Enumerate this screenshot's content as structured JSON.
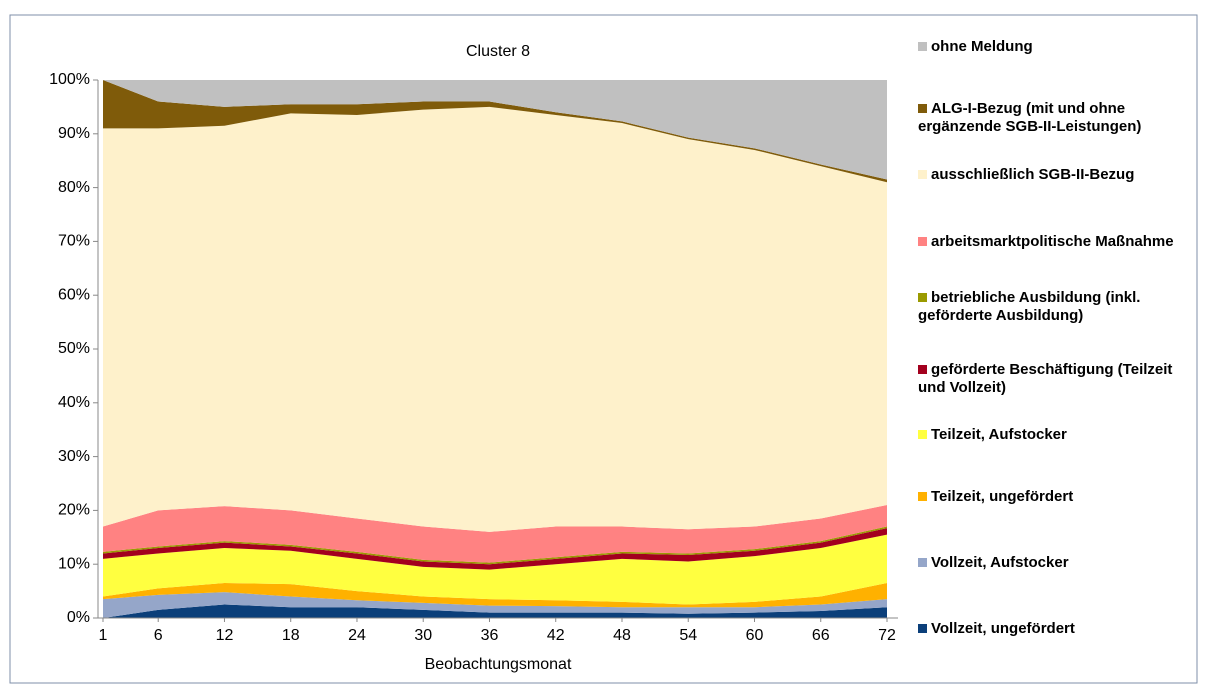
{
  "chart_data": {
    "type": "stacked_area",
    "title": "Cluster 8",
    "xlabel": "Beobachtungsmonat",
    "x": [
      1,
      6,
      12,
      18,
      24,
      30,
      36,
      42,
      48,
      54,
      60,
      66,
      72
    ],
    "xlim": [
      1,
      72
    ],
    "xticks": [
      1,
      6,
      12,
      18,
      24,
      30,
      36,
      42,
      48,
      54,
      60,
      66,
      72
    ],
    "ylim": [
      0,
      100
    ],
    "yticks": [
      {
        "value": 0,
        "label": "0%"
      },
      {
        "value": 10,
        "label": "10%"
      },
      {
        "value": 20,
        "label": "20%"
      },
      {
        "value": 30,
        "label": "30%"
      },
      {
        "value": 40,
        "label": "40%"
      },
      {
        "value": 50,
        "label": "50%"
      },
      {
        "value": 60,
        "label": "60%"
      },
      {
        "value": 70,
        "label": "70%"
      },
      {
        "value": 80,
        "label": "80%"
      },
      {
        "value": 90,
        "label": "90%"
      },
      {
        "value": 100,
        "label": "100%"
      }
    ],
    "series": [
      {
        "name": "Vollzeit, ungefördert",
        "color": "#0b3f7a",
        "values": [
          0,
          1.5,
          2.5,
          2,
          2,
          1.5,
          1,
          1,
          1,
          0.8,
          1,
          1.3,
          2
        ]
      },
      {
        "name": "Vollzeit, Aufstocker",
        "color": "#95a6c9",
        "values": [
          3.5,
          2.8,
          2.3,
          2,
          1.3,
          1.3,
          1.3,
          1.2,
          1,
          1.2,
          1,
          1.2,
          1.5
        ]
      },
      {
        "name": "Teilzeit, ungefördert",
        "color": "#ffb100",
        "values": [
          0.5,
          1.2,
          1.7,
          2.3,
          1.7,
          1.2,
          1.2,
          1.1,
          1,
          0.5,
          1,
          1.5,
          3
        ]
      },
      {
        "name": "Teilzeit, Aufstocker",
        "color": "#ffff40",
        "values": [
          7,
          6.5,
          6.5,
          6.2,
          6,
          5.5,
          5.5,
          6.7,
          8,
          8,
          8.5,
          9,
          9
        ]
      },
      {
        "name": "geförderte Beschäftigung (Teilzeit und Vollzeit)",
        "color": "#a3001e",
        "values": [
          1,
          1,
          1,
          0.8,
          1,
          1,
          1,
          1,
          1,
          1.2,
          1,
          1,
          1.2
        ]
      },
      {
        "name": "betriebliche Ausbildung (inkl. geförderte Ausbildung)",
        "color": "#9a9a00",
        "values": [
          0.3,
          0.3,
          0.3,
          0.3,
          0.3,
          0.3,
          0.3,
          0.3,
          0.3,
          0.3,
          0.3,
          0.3,
          0.3
        ]
      },
      {
        "name": "arbeitsmarktpolitische Maßnahme",
        "color": "#ff8282",
        "values": [
          4.7,
          6.7,
          6.5,
          6.4,
          6.2,
          6.2,
          5.7,
          5.7,
          4.7,
          4.5,
          4.2,
          4.2,
          4
        ]
      },
      {
        "name": "ausschließlich SGB-II-Bezug",
        "color": "#fef1cb",
        "values": [
          74,
          71,
          70.7,
          73.8,
          75,
          77.5,
          79,
          76.5,
          75,
          72.5,
          70,
          65.5,
          60
        ]
      },
      {
        "name": "ALG-I-Bezug (mit und ohne ergänzende SGB-II-Leistungen)",
        "color": "#7f5b0a",
        "values": [
          9,
          5,
          3.5,
          1.7,
          2,
          1.5,
          1,
          0.5,
          0.3,
          0.3,
          0.3,
          0.3,
          0.5
        ]
      },
      {
        "name": "ohne Meldung",
        "color": "#c0c0c0",
        "values": [
          0,
          4,
          5,
          4.5,
          4.5,
          4,
          4,
          6,
          7.7,
          10.7,
          12.7,
          15.7,
          18.5
        ]
      }
    ]
  }
}
